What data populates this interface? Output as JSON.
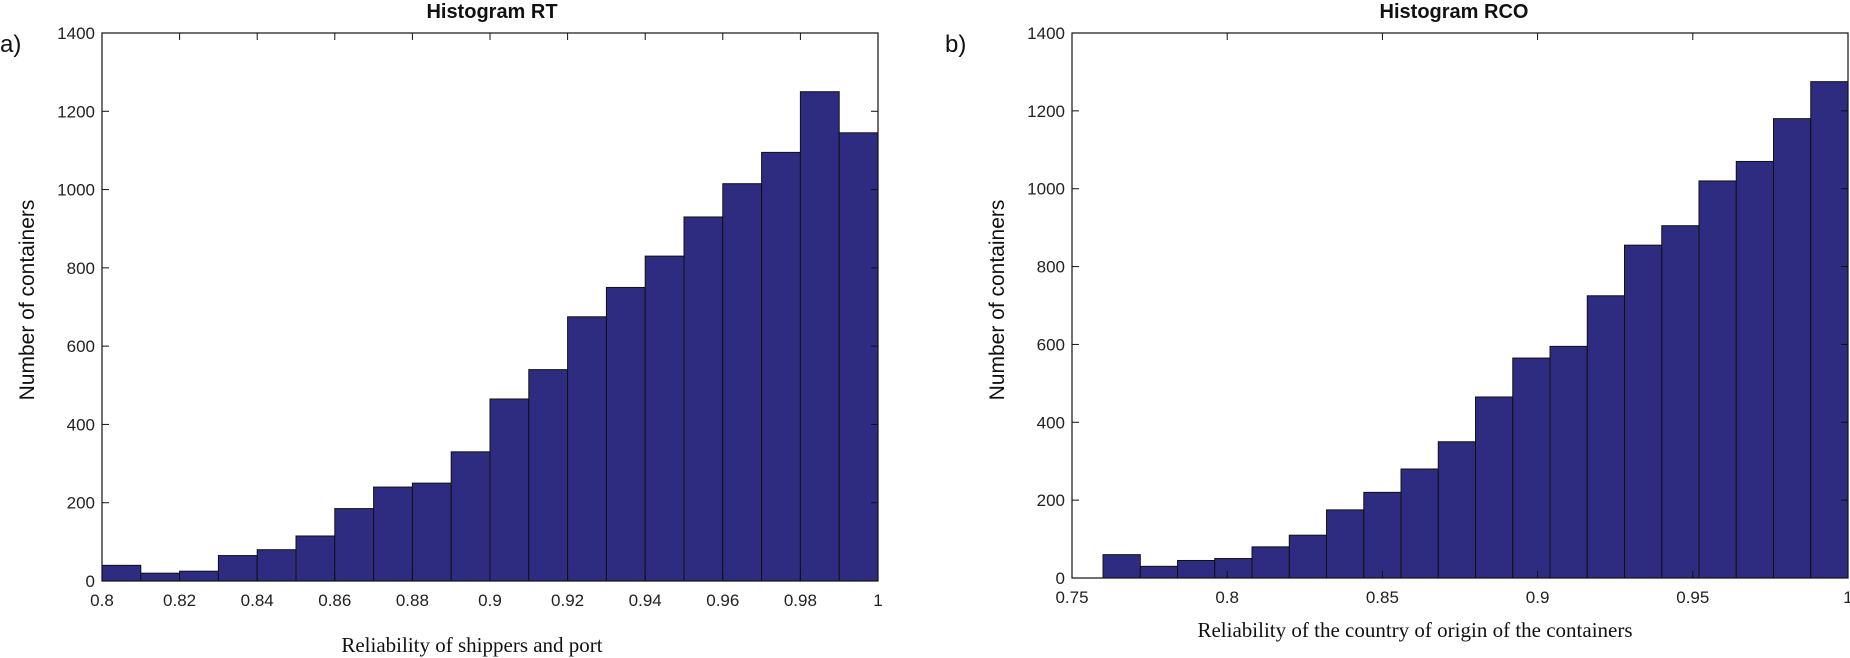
{
  "chart_data": [
    {
      "panel_label": "a)",
      "type": "bar",
      "title": "Histogram RT",
      "xlabel": "Reliability  of shippers and port",
      "ylabel": "Number of containers",
      "xlim": [
        0.8,
        1.0
      ],
      "ylim": [
        0,
        1400
      ],
      "xticks": [
        0.8,
        0.82,
        0.84,
        0.86,
        0.88,
        0.9,
        0.92,
        0.94,
        0.96,
        0.98,
        1
      ],
      "xtick_labels": [
        "0.8",
        "0.82",
        "0.84",
        "0.86",
        "0.88",
        "0.9",
        "0.92",
        "0.94",
        "0.96",
        "0.98",
        "1"
      ],
      "yticks": [
        0,
        200,
        400,
        600,
        800,
        1000,
        1200,
        1400
      ],
      "ytick_labels": [
        "0",
        "200",
        "400",
        "600",
        "800",
        "1000",
        "1200",
        "1400"
      ],
      "bin_edges": [
        0.8,
        0.81,
        0.82,
        0.83,
        0.84,
        0.85,
        0.86,
        0.87,
        0.88,
        0.89,
        0.9,
        0.91,
        0.92,
        0.93,
        0.94,
        0.95,
        0.96,
        0.97,
        0.98,
        0.99,
        1.0
      ],
      "values": [
        40,
        20,
        25,
        65,
        80,
        115,
        185,
        240,
        250,
        330,
        465,
        540,
        675,
        750,
        830,
        930,
        1015,
        1095,
        1250,
        1145
      ],
      "bar_color": "#2e2c81",
      "grid": false
    },
    {
      "panel_label": "b)",
      "type": "bar",
      "title": "Histogram RCO",
      "xlabel": "Reliability  of the country of origin of the containers",
      "ylabel": "Number of containers",
      "xlim": [
        0.75,
        1.0
      ],
      "ylim": [
        0,
        1400
      ],
      "xticks": [
        0.75,
        0.8,
        0.85,
        0.9,
        0.95,
        1
      ],
      "xtick_labels": [
        "0.75",
        "0.8",
        "0.85",
        "0.9",
        "0.95",
        "1"
      ],
      "yticks": [
        0,
        200,
        400,
        600,
        800,
        1000,
        1200,
        1400
      ],
      "ytick_labels": [
        "0",
        "200",
        "400",
        "600",
        "800",
        "1000",
        "1200",
        "1400"
      ],
      "bin_edges": [
        0.76,
        0.772,
        0.784,
        0.796,
        0.808,
        0.82,
        0.832,
        0.844,
        0.856,
        0.868,
        0.88,
        0.892,
        0.904,
        0.916,
        0.928,
        0.94,
        0.952,
        0.964,
        0.976,
        0.988,
        1.0
      ],
      "values": [
        60,
        30,
        45,
        50,
        80,
        110,
        175,
        220,
        280,
        350,
        465,
        565,
        595,
        725,
        855,
        905,
        1020,
        1070,
        1180,
        1275
      ],
      "bar_color": "#2e2c81",
      "grid": false
    }
  ]
}
